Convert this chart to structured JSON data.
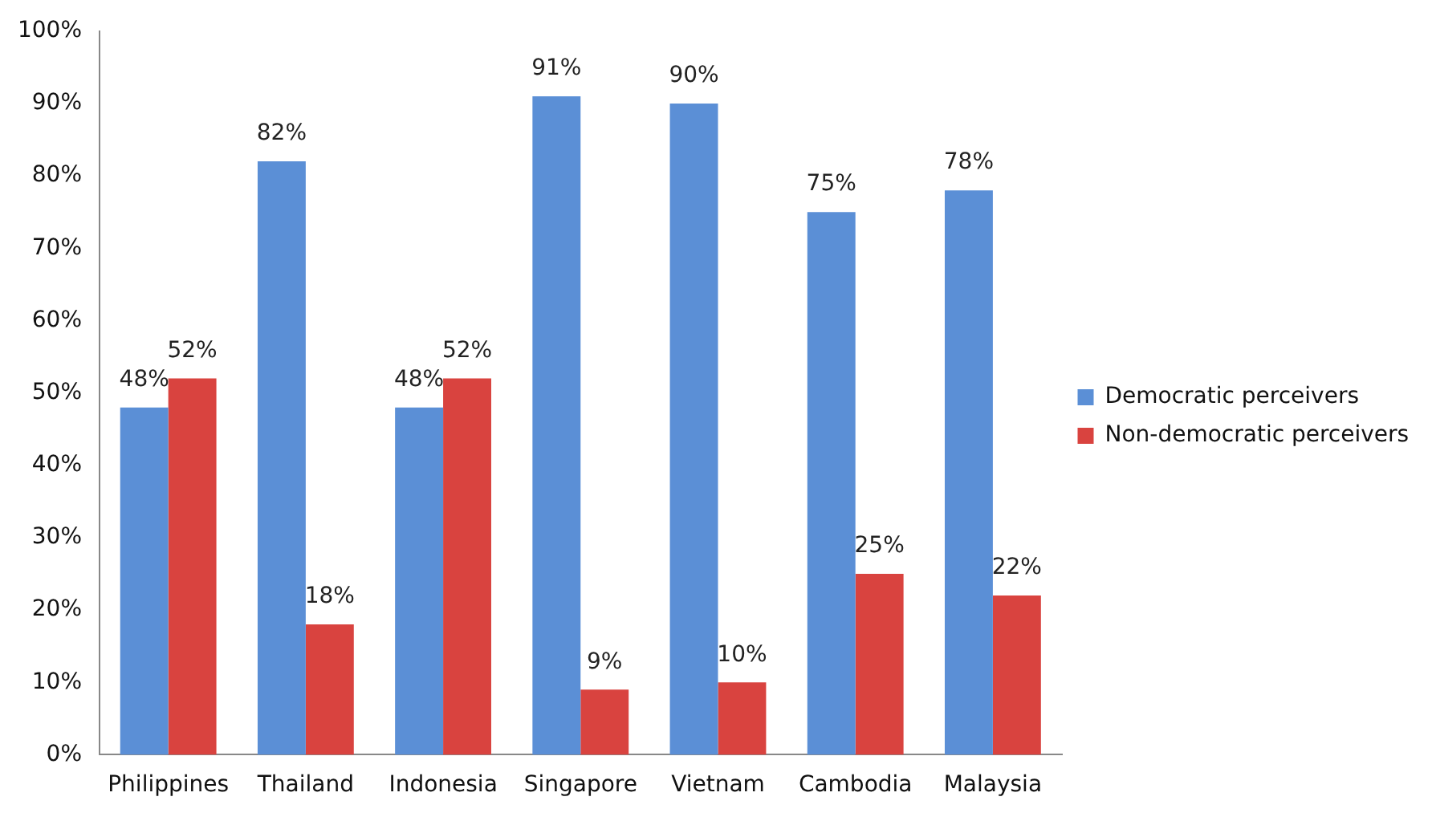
{
  "chart_data": {
    "type": "bar",
    "categories": [
      "Philippines",
      "Thailand",
      "Indonesia",
      "Singapore",
      "Vietnam",
      "Cambodia",
      "Malaysia"
    ],
    "series": [
      {
        "name": "Democratic perceivers",
        "color": "#5b8fd6",
        "values": [
          48,
          82,
          48,
          91,
          90,
          75,
          78
        ],
        "value_labels": [
          "48%",
          "82%",
          "48%",
          "91%",
          "90%",
          "75%",
          "78%"
        ]
      },
      {
        "name": "Non-democratic perceivers",
        "color": "#d9433f",
        "values": [
          52,
          18,
          52,
          9,
          10,
          25,
          22
        ],
        "value_labels": [
          "52%",
          "18%",
          "52%",
          "9%",
          "10%",
          "25%",
          "22%"
        ]
      }
    ],
    "ylim": [
      0,
      100
    ],
    "yticks": [
      {
        "value": 0,
        "label": "0%"
      },
      {
        "value": 10,
        "label": "10%"
      },
      {
        "value": 20,
        "label": "20%"
      },
      {
        "value": 30,
        "label": "30%"
      },
      {
        "value": 40,
        "label": "40%"
      },
      {
        "value": 50,
        "label": "50%"
      },
      {
        "value": 60,
        "label": "60%"
      },
      {
        "value": 70,
        "label": "70%"
      },
      {
        "value": 80,
        "label": "80%"
      },
      {
        "value": 90,
        "label": "90%"
      },
      {
        "value": 100,
        "label": "100%"
      }
    ],
    "grid": false,
    "legend": "right"
  }
}
